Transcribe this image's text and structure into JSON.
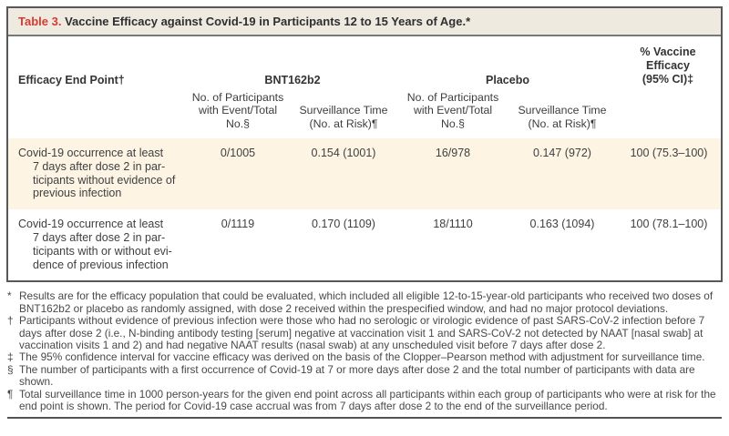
{
  "title": {
    "label": "Table 3.",
    "text": " Vaccine Efficacy against Covid-19 in Participants 12 to 15 Years of Age.*"
  },
  "header": {
    "endpoint_label": "Efficacy End Point†",
    "groups": {
      "bnt162b2": "BNT162b2",
      "placebo": "Placebo"
    },
    "subcolumns": {
      "events": "No. of Participants\nwith Event/Total\nNo.§",
      "surveillance": "Surveillance Time\n(No. at Risk)¶"
    },
    "efficacy_label": "% Vaccine Efficacy\n(95% CI)‡"
  },
  "rows": [
    {
      "endpoint": "Covid-19 occurrence at least\n7 days after dose 2 in par-\nticipants without evidence of\nprevious infection",
      "bnt_events": "0/1005",
      "bnt_surveillance": "0.154 (1001)",
      "placebo_events": "16/978",
      "placebo_surveillance": "0.147 (972)",
      "efficacy": "100 (75.3–100)"
    },
    {
      "endpoint": "Covid-19 occurrence at least\n7 days after dose 2 in par-\nticipants with or without evi-\ndence of previous infection",
      "bnt_events": "0/1119",
      "bnt_surveillance": "0.170 (1109)",
      "placebo_events": "18/1110",
      "placebo_surveillance": "0.163 (1094)",
      "efficacy": "100 (78.1–100)"
    }
  ],
  "footnotes": [
    {
      "symbol": "*",
      "text": "Results are for the efficacy population that could be evaluated, which included all eligible 12-to-15-year-old participants who received two doses of BNT162b2 or placebo as randomly assigned, with dose 2 received within the prespecified window, and had no major protocol deviations."
    },
    {
      "symbol": "†",
      "text": "Participants without evidence of previous infection were those who had no serologic or virologic evidence of past SARS-CoV-2 infection before 7 days after dose 2 (i.e., N-binding antibody testing [serum] negative at vaccination visit 1 and SARS-CoV-2 not detected by NAAT [nasal swab] at vaccination visits 1 and 2) and had negative NAAT results (nasal swab) at any unscheduled visit before 7 days after dose 2."
    },
    {
      "symbol": "‡",
      "text": "The 95% confidence interval for vaccine efficacy was derived on the basis of the Clopper–Pearson method with adjustment for surveillance time."
    },
    {
      "symbol": "§",
      "text": "The number of participants with a first occurrence of Covid-19 at 7 or more days after dose 2 and the total number of participants with data are shown."
    },
    {
      "symbol": "¶",
      "text": "Total surveillance time in 1000 person-years for the given end point across all participants within each group of participants who were at risk for the end point is shown. The period for Covid-19 case accrual was from 7 days after dose 2 to the end of the surveillance period."
    }
  ],
  "colors": {
    "accent_red": "#d63a32",
    "title_bar_bg": "#eeeae0",
    "row_shade": "#fdf4e3",
    "border": "#57585a"
  }
}
